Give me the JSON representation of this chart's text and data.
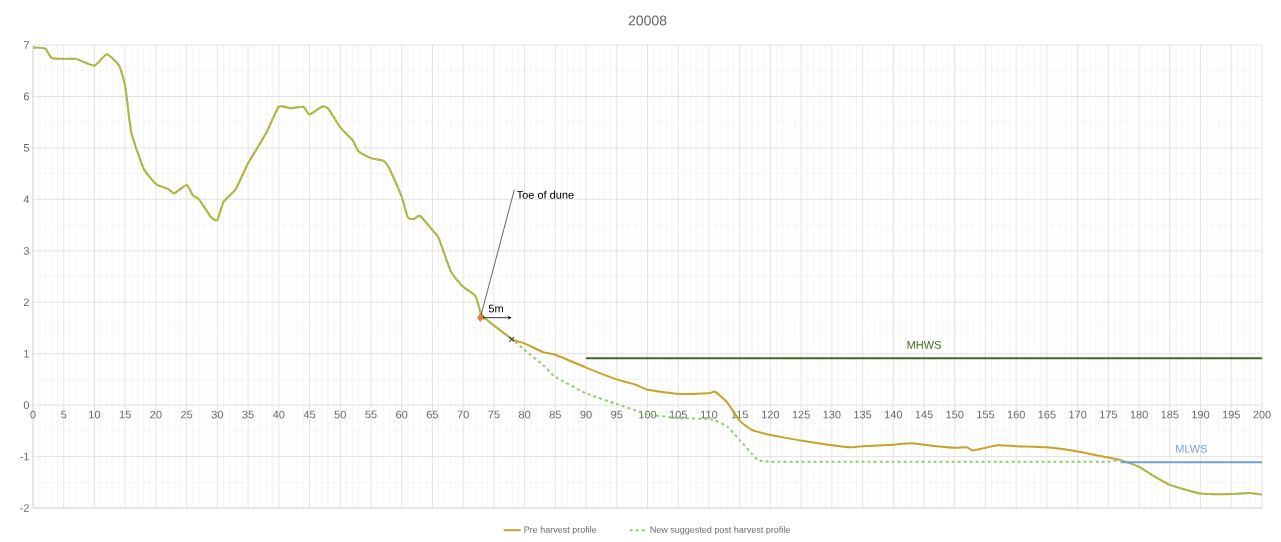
{
  "chart_data": {
    "type": "line",
    "title": "20008",
    "x": [
      0,
      2,
      3,
      5,
      7,
      10,
      12,
      14,
      15,
      16,
      18,
      20,
      22,
      23,
      25,
      26,
      27,
      29,
      30,
      31,
      33,
      35,
      38,
      40,
      42,
      44,
      45,
      47,
      48,
      50,
      52,
      53,
      55,
      57,
      58,
      60,
      61,
      62,
      63,
      65,
      66,
      68,
      70,
      72,
      73,
      75,
      78,
      80,
      83,
      85,
      90,
      95,
      98,
      100,
      105,
      110,
      111,
      113,
      115,
      117,
      118,
      120,
      125,
      130,
      133,
      135,
      140,
      143,
      147,
      150,
      152,
      153,
      157,
      160,
      165,
      170,
      175,
      177,
      180,
      182,
      185,
      190,
      195,
      198,
      200
    ],
    "series": [
      {
        "name": "Pre harvest profile",
        "color": "#c9a227",
        "line_style": "solid",
        "values": [
          6.95,
          6.93,
          6.75,
          6.73,
          6.73,
          6.6,
          6.82,
          6.6,
          6.2,
          5.3,
          4.6,
          4.3,
          4.2,
          4.12,
          4.28,
          4.08,
          4.0,
          3.65,
          3.6,
          3.95,
          4.2,
          4.7,
          5.3,
          5.8,
          5.77,
          5.8,
          5.65,
          5.8,
          5.77,
          5.4,
          5.15,
          4.93,
          4.8,
          4.75,
          4.6,
          4.05,
          3.65,
          3.62,
          3.68,
          3.4,
          3.25,
          2.6,
          2.3,
          2.12,
          1.75,
          1.55,
          1.28,
          1.2,
          1.03,
          0.98,
          0.73,
          0.5,
          0.4,
          0.3,
          0.22,
          0.23,
          0.26,
          0.05,
          -0.3,
          -0.48,
          -0.52,
          -0.58,
          -0.69,
          -0.78,
          -0.82,
          -0.8,
          -0.77,
          -0.74,
          -0.8,
          -0.83,
          -0.82,
          -0.88,
          -0.78,
          -0.8,
          -0.82,
          -0.9,
          -1.02,
          -1.07,
          -1.2,
          -1.35,
          -1.55,
          -1.72,
          -1.73,
          -1.71,
          -1.74
        ]
      },
      {
        "name": "New suggested post harvest profile",
        "color": "#8fcf68",
        "line_style": "dashed",
        "values": [
          6.95,
          6.93,
          6.75,
          6.73,
          6.73,
          6.6,
          6.82,
          6.6,
          6.2,
          5.3,
          4.6,
          4.3,
          4.2,
          4.12,
          4.28,
          4.08,
          4.0,
          3.65,
          3.6,
          3.95,
          4.2,
          4.7,
          5.3,
          5.8,
          5.77,
          5.8,
          5.65,
          5.8,
          5.77,
          5.4,
          5.15,
          4.93,
          4.8,
          4.75,
          4.6,
          4.05,
          3.65,
          3.62,
          3.68,
          3.4,
          3.25,
          2.6,
          2.3,
          2.12,
          1.75,
          1.55,
          1.28,
          1.07,
          0.78,
          0.55,
          0.23,
          0.02,
          -0.1,
          -0.18,
          -0.25,
          -0.27,
          -0.3,
          -0.42,
          -0.68,
          -0.95,
          -1.07,
          -1.1,
          -1.1,
          -1.1,
          -1.1,
          -1.1,
          -1.1,
          -1.1,
          -1.1,
          -1.1,
          -1.1,
          -1.1,
          -1.1,
          -1.1,
          -1.1,
          -1.1,
          -1.1,
          -1.07,
          -1.2,
          -1.35,
          -1.55,
          -1.72,
          -1.73,
          -1.71,
          -1.74
        ]
      },
      {
        "name": "MHWS",
        "color": "#3d6b21",
        "line_style": "solid",
        "x": [
          90,
          200
        ],
        "values": [
          0.91,
          0.91
        ]
      },
      {
        "name": "MLWS",
        "color": "#6fa0d8",
        "line_style": "solid",
        "x": [
          177,
          200
        ],
        "values": [
          -1.11,
          -1.11
        ]
      },
      {
        "type": "scatter",
        "marker": "diamond",
        "color": "#ed7d31",
        "x": [
          72.8
        ],
        "values": [
          1.7
        ]
      },
      {
        "type": "scatter",
        "marker": "cross",
        "color": "#333333",
        "x": [
          77.9
        ],
        "values": [
          1.28
        ]
      }
    ],
    "annotations": [
      {
        "text": "Toe of dune",
        "x": 72.8,
        "y": 1.7
      },
      "5m"
    ],
    "xlim": [
      0,
      200
    ],
    "xticks": [
      0,
      5,
      10,
      15,
      20,
      25,
      30,
      35,
      40,
      45,
      50,
      55,
      60,
      65,
      70,
      75,
      80,
      85,
      90,
      95,
      100,
      105,
      110,
      115,
      120,
      125,
      130,
      135,
      140,
      145,
      150,
      155,
      160,
      165,
      170,
      175,
      180,
      185,
      190,
      195,
      200
    ],
    "ylim": [
      -2,
      7
    ],
    "yticks": [
      -2,
      -1,
      0,
      1,
      2,
      3,
      4,
      5,
      6,
      7
    ],
    "grid": true,
    "legend": "bottom",
    "marker": "none"
  }
}
